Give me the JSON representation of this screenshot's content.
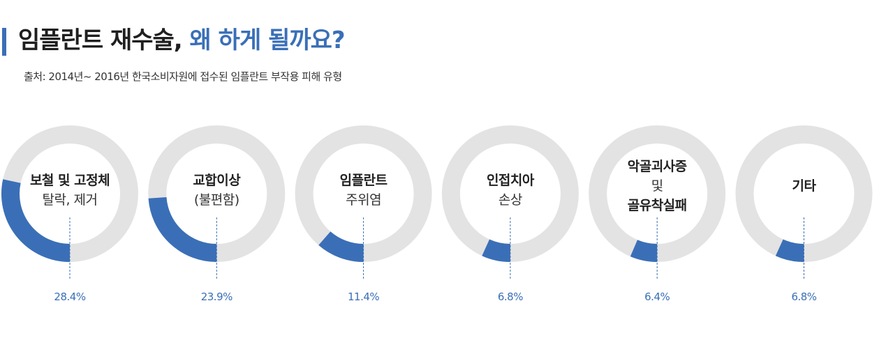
{
  "header": {
    "title_main": "임플란트 재수술,",
    "title_accent": " 왜 하게 될까요?",
    "source": "출처: 2014년~ 2016년 한국소비자원에 접수된 임플란트 부작용 피해 유형"
  },
  "colors": {
    "accent": "#3a6fb7",
    "track": "#e3e3e3"
  },
  "chart_data": {
    "type": "donut",
    "unit": "%",
    "items": [
      {
        "value": 28.4,
        "display": "28.4%",
        "label_lines": [
          {
            "text": "보철 및 고정체",
            "bold": true
          },
          {
            "text": "탈락, 제거",
            "bold": false
          }
        ]
      },
      {
        "value": 23.9,
        "display": "23.9%",
        "label_lines": [
          {
            "text": "교합이상",
            "bold": true
          },
          {
            "text": "(불편함)",
            "bold": false
          }
        ]
      },
      {
        "value": 11.4,
        "display": "11.4%",
        "label_lines": [
          {
            "text": "임플란트",
            "bold": true
          },
          {
            "text": "주위염",
            "bold": false
          }
        ]
      },
      {
        "value": 6.8,
        "display": "6.8%",
        "label_lines": [
          {
            "text": "인접치아",
            "bold": true
          },
          {
            "text": "손상",
            "bold": false
          }
        ]
      },
      {
        "value": 6.4,
        "display": "6.4%",
        "label_lines": [
          {
            "text": "악골괴사증",
            "bold": true
          },
          {
            "text": "및",
            "bold": false
          },
          {
            "text": "골유착실패",
            "bold": true
          }
        ]
      },
      {
        "value": 6.8,
        "display": "6.8%",
        "label_lines": [
          {
            "text": "기타",
            "bold": true
          }
        ]
      }
    ]
  }
}
